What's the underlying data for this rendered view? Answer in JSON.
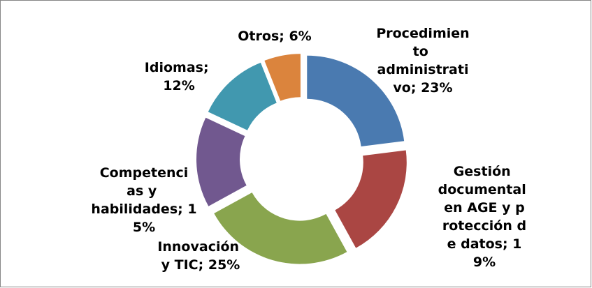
{
  "chart_data": {
    "type": "doughnut",
    "values": [
      23,
      19,
      25,
      15,
      12,
      6
    ],
    "value_labels": [
      "Procedimiento administrativo; 23%",
      "Gestión documental en AGE  y protección de datos; 19%",
      "Innovación y TIC; 25%",
      "Competencias y habilidades; 15%",
      "Idiomas; 12%",
      "Otros; 6%"
    ],
    "colors": [
      "#4a7ab0",
      "#aa4643",
      "#89a54e",
      "#71588f",
      "#4198af",
      "#db843d"
    ]
  }
}
